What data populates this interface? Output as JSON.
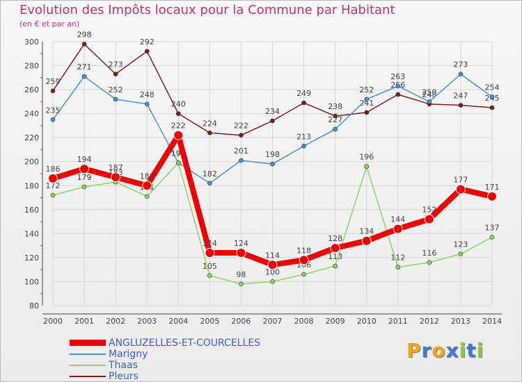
{
  "title": "Evolution des Impôts locaux pour la Commune par Habitant",
  "subtitle": "(en € et par an)",
  "logo": {
    "letters": [
      "P",
      "r",
      "o",
      "x",
      "i",
      "t",
      "i"
    ],
    "colors": [
      "#f2a21b",
      "#3a7bd5",
      "#f2a21b",
      "#3a7bd5",
      "#8dc63f",
      "#3a7bd5",
      "#8dc63f"
    ]
  },
  "chart_data": {
    "type": "line",
    "x": [
      "2000",
      "2001",
      "2002",
      "2003",
      "2004",
      "2005",
      "2006",
      "2007",
      "2008",
      "2009",
      "2010",
      "2011",
      "2012",
      "2013",
      "2014"
    ],
    "ylim": [
      80,
      300
    ],
    "yticks": [
      80,
      100,
      120,
      140,
      160,
      180,
      200,
      220,
      240,
      260,
      280,
      300
    ],
    "grid": true,
    "legend_position": "bottom-left",
    "series": [
      {
        "name": "Pleurs",
        "color": "#7a1e1e",
        "values": [
          259,
          298,
          273,
          292,
          240,
          224,
          222,
          234,
          249,
          238,
          241,
          256,
          248,
          247,
          245
        ]
      },
      {
        "name": "Marigny",
        "color": "#4a90d9",
        "values": [
          235,
          271,
          252,
          248,
          199,
          182,
          201,
          198,
          213,
          227,
          252,
          263,
          250,
          273,
          254
        ]
      },
      {
        "name": "Thaas",
        "color": "#8dd65e",
        "values": [
          172,
          179,
          183,
          171,
          199,
          105,
          98,
          100,
          106,
          113,
          196,
          112,
          116,
          123,
          137
        ]
      },
      {
        "name": "ANGLUZELLES-ET-COURCELLES",
        "color": "#ee0000",
        "values": [
          186,
          194,
          187,
          180,
          222,
          124,
          124,
          114,
          118,
          128,
          134,
          144,
          152,
          177,
          171
        ]
      }
    ]
  },
  "legend": [
    {
      "label": "ANGLUZELLES-ET-COURCELLES",
      "color": "#ee0000",
      "thickness": 9
    },
    {
      "label": "Marigny",
      "color": "#4a90d9",
      "thickness": 2
    },
    {
      "label": "Thaas",
      "color": "#8dd65e",
      "thickness": 2
    },
    {
      "label": "Pleurs",
      "color": "#7a1e1e",
      "thickness": 2
    }
  ]
}
